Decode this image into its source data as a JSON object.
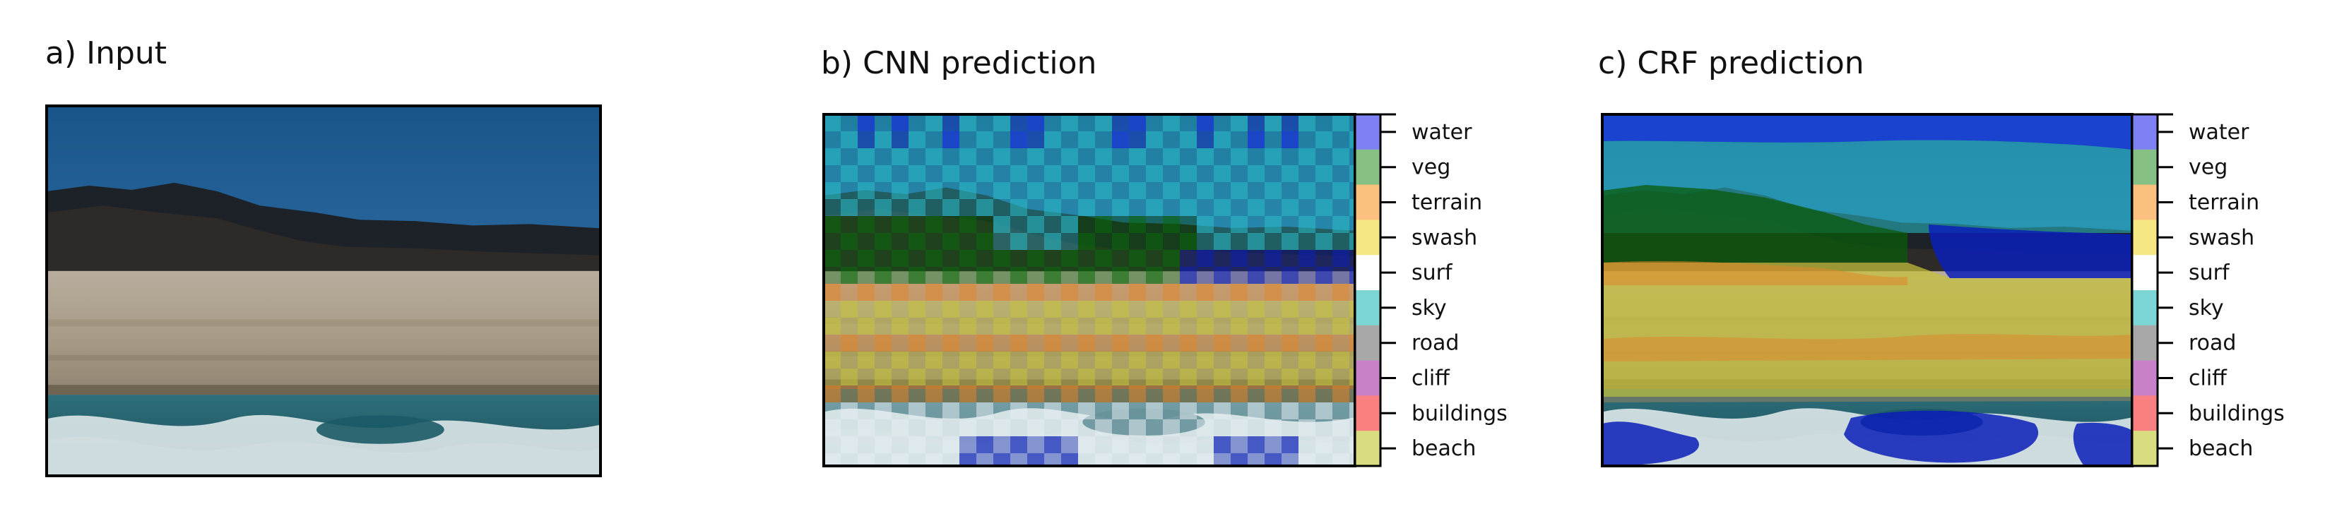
{
  "panels": {
    "input": {
      "title": "a) Input"
    },
    "cnn": {
      "title": "b) CNN prediction"
    },
    "crf": {
      "title": "c) CRF prediction"
    }
  },
  "legend": {
    "classes": [
      {
        "label": "water",
        "color": "#8080f5"
      },
      {
        "label": "veg",
        "color": "#86c084"
      },
      {
        "label": "terrain",
        "color": "#fbc07f"
      },
      {
        "label": "swash",
        "color": "#f6e785"
      },
      {
        "label": "surf",
        "color": "#ffffff"
      },
      {
        "label": "sky",
        "color": "#7cd6d6"
      },
      {
        "label": "road",
        "color": "#a8a8a8"
      },
      {
        "label": "cliff",
        "color": "#c880c8"
      },
      {
        "label": "buildings",
        "color": "#f98080"
      },
      {
        "label": "beach",
        "color": "#d8de80"
      }
    ]
  }
}
